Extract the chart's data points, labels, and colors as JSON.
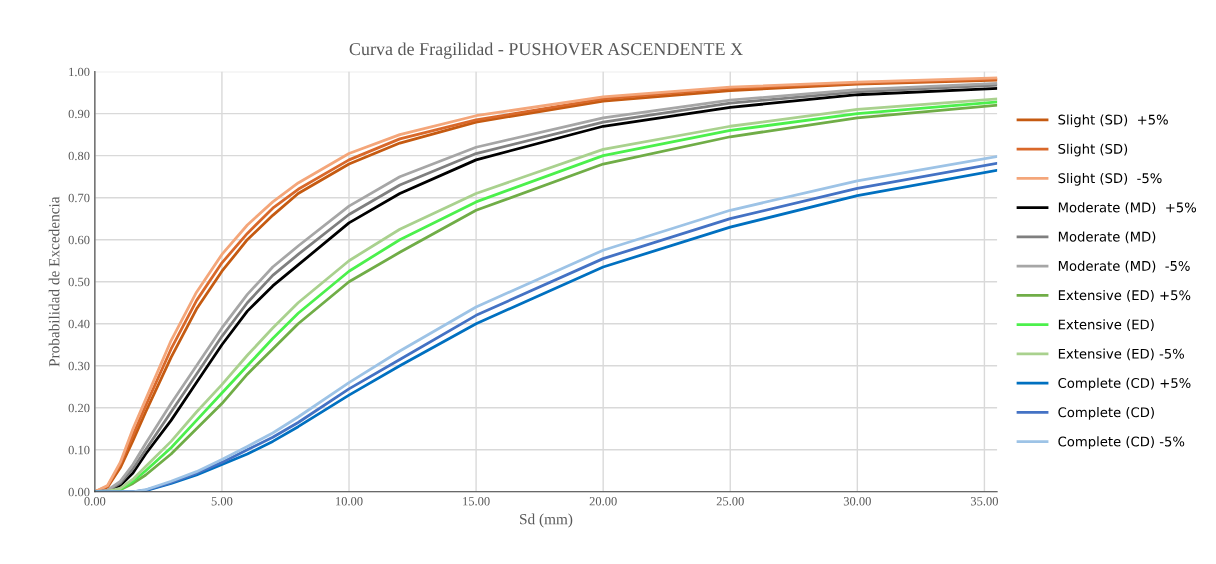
{
  "chart_data": {
    "type": "line",
    "title": "Curva de Fragilidad - PUSHOVER ASCENDENTE X",
    "xlabel": "Sd (mm)",
    "ylabel": "Probabilidad de Excedencia",
    "x": [
      0,
      0.5,
      1,
      1.5,
      2,
      3,
      4,
      5,
      6,
      7,
      8,
      10,
      12,
      15,
      20,
      25,
      30,
      35.5
    ],
    "xlim": [
      0,
      35.5
    ],
    "ylim": [
      0,
      1
    ],
    "xticks": [
      {
        "value": 0,
        "label": "0.00"
      },
      {
        "value": 5,
        "label": "5.00"
      },
      {
        "value": 10,
        "label": "10.00"
      },
      {
        "value": 15,
        "label": "15.00"
      },
      {
        "value": 20,
        "label": "20.00"
      },
      {
        "value": 25,
        "label": "25.00"
      },
      {
        "value": 30,
        "label": "30.00"
      },
      {
        "value": 35,
        "label": "35.00"
      }
    ],
    "yticks": [
      {
        "value": 0,
        "label": "0.00"
      },
      {
        "value": 0.1,
        "label": "0.10"
      },
      {
        "value": 0.2,
        "label": "0.20"
      },
      {
        "value": 0.3,
        "label": "0.30"
      },
      {
        "value": 0.4,
        "label": "0.40"
      },
      {
        "value": 0.5,
        "label": "0.50"
      },
      {
        "value": 0.6,
        "label": "0.60"
      },
      {
        "value": 0.7,
        "label": "0.70"
      },
      {
        "value": 0.8,
        "label": "0.80"
      },
      {
        "value": 0.9,
        "label": "0.90"
      },
      {
        "value": 1,
        "label": "1.00"
      }
    ],
    "grid": true,
    "legend": "right",
    "marker": "none",
    "line_style": "solid",
    "series": [
      {
        "name": "Slight (SD)  +5%",
        "color": "#c55a11",
        "values": [
          0,
          0.011,
          0.057,
          0.122,
          0.19,
          0.32,
          0.435,
          0.525,
          0.6,
          0.658,
          0.71,
          0.78,
          0.83,
          0.88,
          0.93,
          0.955,
          0.97,
          0.98
        ]
      },
      {
        "name": "Slight (SD)",
        "color": "#d9682a",
        "values": [
          0,
          0.013,
          0.065,
          0.135,
          0.205,
          0.34,
          0.455,
          0.545,
          0.615,
          0.675,
          0.72,
          0.79,
          0.84,
          0.885,
          0.935,
          0.96,
          0.972,
          0.982
        ]
      },
      {
        "name": "Slight (SD)  -5%",
        "color": "#f4a67a",
        "values": [
          0,
          0.015,
          0.07,
          0.15,
          0.22,
          0.36,
          0.475,
          0.565,
          0.635,
          0.69,
          0.735,
          0.805,
          0.85,
          0.895,
          0.94,
          0.963,
          0.975,
          0.985
        ]
      },
      {
        "name": "Moderate (MD)  +5%",
        "color": "#000000",
        "values": [
          0,
          0.002,
          0.015,
          0.045,
          0.09,
          0.17,
          0.26,
          0.35,
          0.43,
          0.49,
          0.54,
          0.64,
          0.71,
          0.79,
          0.87,
          0.915,
          0.945,
          0.96
        ]
      },
      {
        "name": "Moderate (MD)",
        "color": "#7f7f7f",
        "values": [
          0,
          0.003,
          0.02,
          0.055,
          0.1,
          0.19,
          0.28,
          0.37,
          0.45,
          0.515,
          0.565,
          0.66,
          0.73,
          0.805,
          0.88,
          0.925,
          0.952,
          0.968
        ]
      },
      {
        "name": "Moderate (MD)  -5%",
        "color": "#a6a6a6",
        "values": [
          0,
          0.004,
          0.025,
          0.065,
          0.115,
          0.21,
          0.3,
          0.39,
          0.47,
          0.535,
          0.585,
          0.68,
          0.75,
          0.82,
          0.89,
          0.932,
          0.957,
          0.972
        ]
      },
      {
        "name": "Extensive (ED) +5%",
        "color": "#70ad47",
        "values": [
          0,
          0,
          0.005,
          0.02,
          0.04,
          0.09,
          0.15,
          0.21,
          0.28,
          0.34,
          0.4,
          0.5,
          0.57,
          0.67,
          0.78,
          0.845,
          0.89,
          0.92
        ]
      },
      {
        "name": "Extensive (ED)",
        "color": "#4cf04c",
        "values": [
          0,
          0,
          0.006,
          0.025,
          0.05,
          0.105,
          0.17,
          0.235,
          0.3,
          0.365,
          0.425,
          0.525,
          0.6,
          0.69,
          0.8,
          0.86,
          0.9,
          0.928
        ]
      },
      {
        "name": "Extensive (ED) -5%",
        "color": "#a9d18e",
        "values": [
          0,
          0.001,
          0.008,
          0.03,
          0.06,
          0.12,
          0.19,
          0.255,
          0.325,
          0.39,
          0.45,
          0.55,
          0.625,
          0.71,
          0.815,
          0.87,
          0.91,
          0.935
        ]
      },
      {
        "name": "Complete (CD) +5%",
        "color": "#0070c0",
        "values": [
          0,
          0,
          0,
          0,
          0.003,
          0.02,
          0.04,
          0.065,
          0.09,
          0.12,
          0.155,
          0.23,
          0.3,
          0.4,
          0.535,
          0.63,
          0.705,
          0.765
        ]
      },
      {
        "name": "Complete (CD)",
        "color": "#4472c4",
        "values": [
          0,
          0,
          0,
          0,
          0.004,
          0.022,
          0.044,
          0.07,
          0.1,
          0.13,
          0.165,
          0.245,
          0.315,
          0.42,
          0.555,
          0.65,
          0.722,
          0.782
        ]
      },
      {
        "name": "Complete (CD) -5%",
        "color": "#9dc3e6",
        "values": [
          0,
          0,
          0,
          0,
          0.005,
          0.025,
          0.048,
          0.077,
          0.108,
          0.14,
          0.178,
          0.26,
          0.335,
          0.44,
          0.575,
          0.67,
          0.74,
          0.798
        ]
      }
    ]
  }
}
